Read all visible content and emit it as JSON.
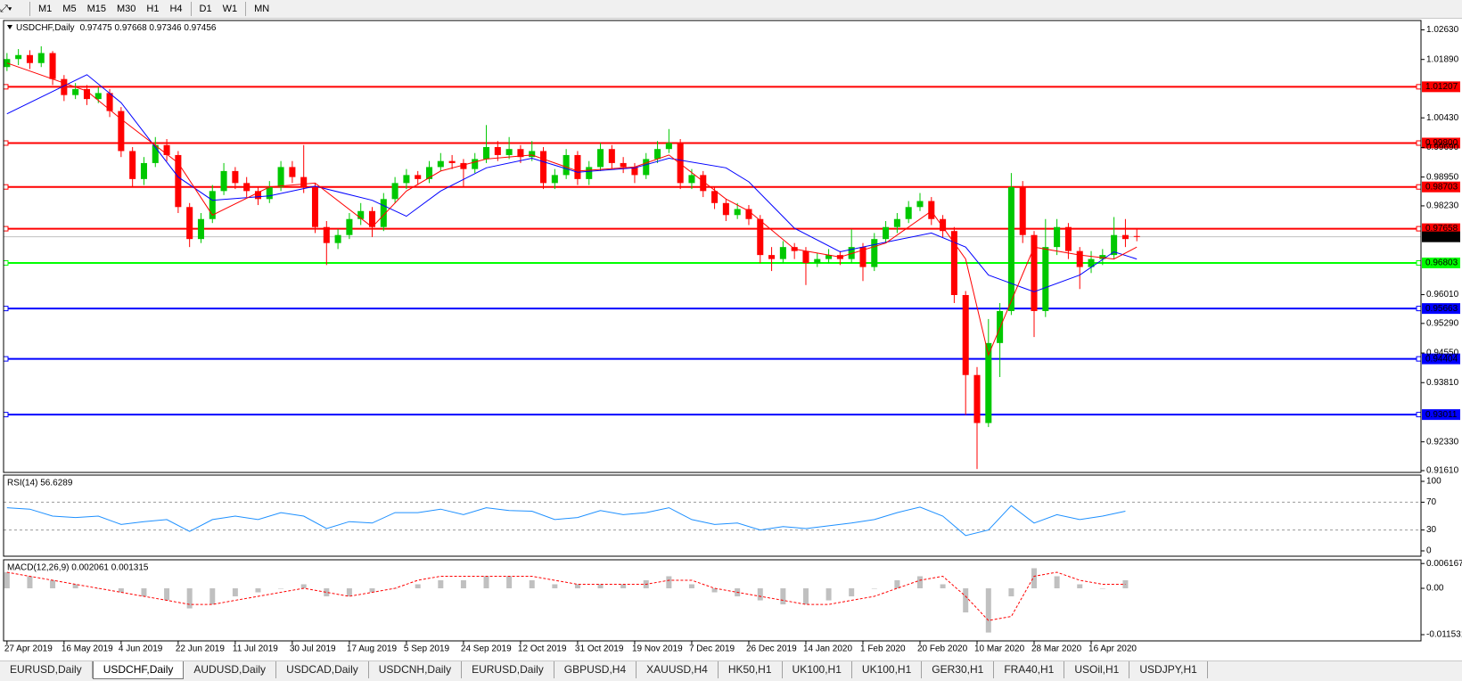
{
  "toolbar": {
    "timeframes": [
      "M1",
      "M5",
      "M15",
      "M30",
      "H1",
      "H4",
      "D1",
      "W1",
      "MN"
    ]
  },
  "tabs": {
    "items": [
      "EURUSD,Daily",
      "USDCHF,Daily",
      "AUDUSD,Daily",
      "USDCAD,Daily",
      "USDCNH,Daily",
      "EURUSD,Daily",
      "GBPUSD,H4",
      "XAUUSD,H4",
      "HK50,H1",
      "UK100,H1",
      "UK100,H1",
      "GER30,H1",
      "FRA40,H1",
      "USOil,H1",
      "USDJPY,H1"
    ],
    "active": 1
  },
  "chart_data": [
    {
      "type": "candlestick",
      "title": "USDCHF,Daily",
      "ohlc_label": "0.97475 0.97668 0.97346 0.97456",
      "up_color": "#00c800",
      "down_color": "#ff0000",
      "xlim": [
        -0.3,
        123.9
      ],
      "ylim": [
        0.91565,
        1.02864
      ],
      "xticks": [
        {
          "value": 0,
          "label": "27 Apr 2019"
        },
        {
          "value": 5,
          "label": "16 May 2019"
        },
        {
          "value": 10,
          "label": "4 Jun 2019"
        },
        {
          "value": 15,
          "label": "22 Jun 2019"
        },
        {
          "value": 20,
          "label": "11 Jul 2019"
        },
        {
          "value": 25,
          "label": "30 Jul 2019"
        },
        {
          "value": 30,
          "label": "17 Aug 2019"
        },
        {
          "value": 35,
          "label": "5 Sep 2019"
        },
        {
          "value": 40,
          "label": "24 Sep 2019"
        },
        {
          "value": 45,
          "label": "12 Oct 2019"
        },
        {
          "value": 50,
          "label": "31 Oct 2019"
        },
        {
          "value": 55,
          "label": "19 Nov 2019"
        },
        {
          "value": 60,
          "label": "7 Dec 2019"
        },
        {
          "value": 65,
          "label": "26 Dec 2019"
        },
        {
          "value": 70,
          "label": "14 Jan 2020"
        },
        {
          "value": 75,
          "label": "1 Feb 2020"
        },
        {
          "value": 80,
          "label": "20 Feb 2020"
        },
        {
          "value": 85,
          "label": "10 Mar 2020"
        },
        {
          "value": 90,
          "label": "28 Mar 2020"
        },
        {
          "value": 95,
          "label": "16 Apr 2020"
        }
      ],
      "yticks": [
        {
          "value": 1.0263,
          "label": "1.02630"
        },
        {
          "value": 1.0189,
          "label": "1.01890"
        },
        {
          "value": 1.0043,
          "label": "1.00430"
        },
        {
          "value": 0.9969,
          "label": "0.99690"
        },
        {
          "value": 0.9895,
          "label": "0.98950"
        },
        {
          "value": 0.9823,
          "label": "0.98230"
        },
        {
          "value": 0.9601,
          "label": "0.96010"
        },
        {
          "value": 0.9529,
          "label": "0.95290"
        },
        {
          "value": 0.9455,
          "label": "0.94550"
        },
        {
          "value": 0.9381,
          "label": "0.93810"
        },
        {
          "value": 0.9233,
          "label": "0.92330"
        },
        {
          "value": 0.9161,
          "label": "0.91610"
        }
      ],
      "levels": [
        {
          "value": 1.01207,
          "label": "1.01207",
          "color": "#ff0000",
          "label_color": "#ffffff"
        },
        {
          "value": 0.998,
          "label": "0.99800",
          "color": "#ff0000",
          "label_color": "#ffffff"
        },
        {
          "value": 0.98703,
          "label": "0.98703",
          "color": "#ff0000",
          "label_color": "#ffffff"
        },
        {
          "value": 0.97658,
          "label": "0.97658",
          "color": "#ff0000",
          "label_color": "#ffffff"
        },
        {
          "value": 0.96803,
          "label": "0.96803",
          "color": "#00ff00",
          "label_color": "#000000"
        },
        {
          "value": 0.95663,
          "label": "0.95663",
          "color": "#0000ff",
          "label_color": "#ffffff"
        },
        {
          "value": 0.94404,
          "label": "0.94404",
          "color": "#0000ff",
          "label_color": "#ffffff"
        },
        {
          "value": 0.93011,
          "label": "0.93011",
          "color": "#0000ff",
          "label_color": "#ffffff"
        }
      ],
      "current_price": {
        "value": 0.97456,
        "label": "0.97456",
        "color": "#c0c0c0"
      },
      "candles": [
        [
          1.017,
          1.0205,
          1.016,
          1.019
        ],
        [
          1.019,
          1.0215,
          1.0175,
          1.02
        ],
        [
          1.02,
          1.0212,
          1.0165,
          1.018
        ],
        [
          1.018,
          1.0222,
          1.017,
          1.0205
        ],
        [
          1.0205,
          1.021,
          1.0125,
          1.014
        ],
        [
          1.014,
          1.015,
          1.0085,
          1.01
        ],
        [
          1.01,
          1.013,
          1.009,
          1.0115
        ],
        [
          1.0115,
          1.0125,
          1.0075,
          1.009
        ],
        [
          1.009,
          1.012,
          1.008,
          1.0105
        ],
        [
          1.0105,
          1.0115,
          1.0045,
          1.006
        ],
        [
          1.006,
          1.007,
          0.9945,
          0.996
        ],
        [
          0.996,
          0.997,
          0.987,
          0.989
        ],
        [
          0.989,
          0.9945,
          0.9875,
          0.993
        ],
        [
          0.993,
          0.9995,
          0.992,
          0.9975
        ],
        [
          0.9975,
          0.999,
          0.9935,
          0.995
        ],
        [
          0.995,
          0.996,
          0.9805,
          0.982
        ],
        [
          0.982,
          0.983,
          0.972,
          0.974
        ],
        [
          0.974,
          0.9805,
          0.973,
          0.979
        ],
        [
          0.979,
          0.9875,
          0.978,
          0.986
        ],
        [
          0.986,
          0.993,
          0.985,
          0.991
        ],
        [
          0.991,
          0.992,
          0.9865,
          0.988
        ],
        [
          0.988,
          0.9895,
          0.9845,
          0.986
        ],
        [
          0.986,
          0.987,
          0.9825,
          0.984
        ],
        [
          0.984,
          0.9885,
          0.983,
          0.987
        ],
        [
          0.987,
          0.9935,
          0.986,
          0.992
        ],
        [
          0.992,
          0.9935,
          0.988,
          0.9895
        ],
        [
          0.9895,
          0.9975,
          0.9855,
          0.987
        ],
        [
          0.987,
          0.988,
          0.9755,
          0.977
        ],
        [
          0.977,
          0.9785,
          0.9675,
          0.973
        ],
        [
          0.973,
          0.9765,
          0.9715,
          0.975
        ],
        [
          0.975,
          0.9805,
          0.974,
          0.979
        ],
        [
          0.979,
          0.983,
          0.9775,
          0.981
        ],
        [
          0.981,
          0.982,
          0.9745,
          0.977
        ],
        [
          0.977,
          0.9855,
          0.976,
          0.984
        ],
        [
          0.984,
          0.9895,
          0.983,
          0.988
        ],
        [
          0.988,
          0.9915,
          0.9865,
          0.99
        ],
        [
          0.99,
          0.991,
          0.9875,
          0.989
        ],
        [
          0.989,
          0.9935,
          0.988,
          0.992
        ],
        [
          0.992,
          0.9955,
          0.991,
          0.9935
        ],
        [
          0.9935,
          0.995,
          0.9915,
          0.993
        ],
        [
          0.993,
          0.994,
          0.987,
          0.9915
        ],
        [
          0.9915,
          0.9955,
          0.9905,
          0.994
        ],
        [
          0.994,
          1.0025,
          0.993,
          0.997
        ],
        [
          0.997,
          0.9985,
          0.9935,
          0.995
        ],
        [
          0.995,
          0.9995,
          0.994,
          0.9965
        ],
        [
          0.9965,
          0.9975,
          0.993,
          0.9945
        ],
        [
          0.9945,
          0.9985,
          0.9935,
          0.996
        ],
        [
          0.996,
          0.997,
          0.9865,
          0.988
        ],
        [
          0.988,
          0.9915,
          0.9865,
          0.99
        ],
        [
          0.99,
          0.9965,
          0.989,
          0.995
        ],
        [
          0.995,
          0.996,
          0.9875,
          0.989
        ],
        [
          0.989,
          0.9935,
          0.9875,
          0.992
        ],
        [
          0.992,
          0.998,
          0.991,
          0.9965
        ],
        [
          0.9965,
          0.9975,
          0.9915,
          0.993
        ],
        [
          0.993,
          0.9945,
          0.9905,
          0.992
        ],
        [
          0.992,
          0.993,
          0.988,
          0.99
        ],
        [
          0.99,
          0.9955,
          0.989,
          0.994
        ],
        [
          0.994,
          0.9985,
          0.993,
          0.9965
        ],
        [
          0.9965,
          1.0015,
          0.9955,
          0.998
        ],
        [
          0.998,
          0.999,
          0.9865,
          0.988
        ],
        [
          0.988,
          0.9915,
          0.9865,
          0.99
        ],
        [
          0.99,
          0.991,
          0.9845,
          0.986
        ],
        [
          0.986,
          0.987,
          0.9815,
          0.983
        ],
        [
          0.983,
          0.984,
          0.9785,
          0.98
        ],
        [
          0.98,
          0.983,
          0.979,
          0.9815
        ],
        [
          0.9815,
          0.9825,
          0.9775,
          0.979
        ],
        [
          0.979,
          0.98,
          0.968,
          0.97
        ],
        [
          0.97,
          0.972,
          0.966,
          0.969
        ],
        [
          0.969,
          0.9735,
          0.968,
          0.972
        ],
        [
          0.972,
          0.973,
          0.969,
          0.971
        ],
        [
          0.971,
          0.972,
          0.9625,
          0.968
        ],
        [
          0.968,
          0.9705,
          0.967,
          0.969
        ],
        [
          0.969,
          0.9715,
          0.968,
          0.97
        ],
        [
          0.97,
          0.971,
          0.9675,
          0.969
        ],
        [
          0.969,
          0.9765,
          0.968,
          0.972
        ],
        [
          0.972,
          0.973,
          0.9635,
          0.967
        ],
        [
          0.967,
          0.9755,
          0.966,
          0.974
        ],
        [
          0.974,
          0.9785,
          0.973,
          0.977
        ],
        [
          0.977,
          0.9805,
          0.9755,
          0.979
        ],
        [
          0.979,
          0.9835,
          0.978,
          0.982
        ],
        [
          0.982,
          0.9855,
          0.981,
          0.9835
        ],
        [
          0.9835,
          0.9845,
          0.9775,
          0.979
        ],
        [
          0.979,
          0.98,
          0.9745,
          0.976
        ],
        [
          0.976,
          0.977,
          0.958,
          0.96
        ],
        [
          0.96,
          0.961,
          0.93,
          0.94
        ],
        [
          0.94,
          0.942,
          0.9165,
          0.928
        ],
        [
          0.928,
          0.954,
          0.927,
          0.948
        ],
        [
          0.948,
          0.958,
          0.9395,
          0.956
        ],
        [
          0.956,
          0.9905,
          0.955,
          0.987
        ],
        [
          0.987,
          0.9885,
          0.973,
          0.975
        ],
        [
          0.975,
          0.976,
          0.9495,
          0.956
        ],
        [
          0.956,
          0.979,
          0.9545,
          0.972
        ],
        [
          0.972,
          0.979,
          0.97,
          0.977
        ],
        [
          0.977,
          0.978,
          0.969,
          0.971
        ],
        [
          0.971,
          0.972,
          0.9615,
          0.967
        ],
        [
          0.967,
          0.971,
          0.9655,
          0.969
        ],
        [
          0.969,
          0.9715,
          0.9675,
          0.97
        ],
        [
          0.97,
          0.9795,
          0.969,
          0.975
        ],
        [
          0.975,
          0.979,
          0.972,
          0.974
        ],
        [
          0.97475,
          0.97668,
          0.97346,
          0.97456
        ]
      ],
      "x": [
        0,
        7,
        10,
        15,
        18,
        23,
        27,
        32,
        35,
        38,
        42,
        46,
        50,
        55,
        58,
        63,
        65,
        69,
        73,
        77,
        81,
        84,
        86,
        90,
        94,
        97,
        99
      ],
      "series": [
        {
          "color": "#0000ff",
          "values": [
            1.0053,
            1.0151,
            1.0081,
            0.9895,
            0.9837,
            0.9848,
            0.9872,
            0.9837,
            0.9797,
            0.986,
            0.9918,
            0.9942,
            0.9907,
            0.9918,
            0.9942,
            0.9918,
            0.9883,
            0.9767,
            0.9708,
            0.9732,
            0.9755,
            0.972,
            0.965,
            0.9608,
            0.965,
            0.9708,
            0.969
          ]
        },
        {
          "color": "#ff0000",
          "values": [
            1.018,
            1.011,
            1.004,
            0.993,
            0.98,
            0.987,
            0.988,
            0.977,
            0.986,
            0.991,
            0.994,
            0.995,
            0.991,
            0.992,
            0.995,
            0.984,
            0.981,
            0.9715,
            0.9695,
            0.973,
            0.981,
            0.969,
            0.945,
            0.972,
            0.97,
            0.969,
            0.972
          ]
        }
      ]
    },
    {
      "type": "line",
      "title": "RSI(14) 56.6289",
      "color": "#1e90ff",
      "xlim": [
        -0.3,
        123.9
      ],
      "ylim": [
        -7.7,
        109
      ],
      "yticks": [
        0,
        30,
        70,
        100
      ],
      "levels": [
        30,
        70
      ],
      "x": [
        0,
        2,
        4,
        6,
        8,
        10,
        12,
        14,
        16,
        18,
        20,
        22,
        24,
        26,
        28,
        30,
        32,
        34,
        36,
        38,
        40,
        42,
        44,
        46,
        48,
        50,
        52,
        54,
        56,
        58,
        60,
        62,
        64,
        66,
        68,
        70,
        72,
        74,
        76,
        78,
        80,
        82,
        84,
        86,
        88,
        90,
        92,
        94,
        96,
        98
      ],
      "values": [
        62,
        60,
        50,
        48,
        50,
        38,
        42,
        45,
        28,
        45,
        50,
        45,
        55,
        50,
        32,
        42,
        40,
        55,
        55,
        60,
        52,
        62,
        58,
        57,
        45,
        48,
        58,
        52,
        55,
        62,
        45,
        38,
        40,
        30,
        35,
        32,
        36,
        40,
        45,
        55,
        63,
        50,
        22,
        30,
        65,
        40,
        52,
        45,
        50,
        57
      ]
    },
    {
      "type": "bar",
      "title": "MACD(12,26,9) 0.002061 0.001315",
      "color": "#c0c0c0",
      "signal_color": "#ff0000",
      "xlim": [
        -0.3,
        123.9
      ],
      "ylim": [
        -0.01308,
        0.0071
      ],
      "yticks": [
        0.006167,
        {
          "value": 0,
          "label": "0.00"
        },
        -0.011531
      ],
      "x": [
        0,
        2,
        4,
        6,
        8,
        10,
        12,
        14,
        16,
        18,
        20,
        22,
        24,
        26,
        28,
        30,
        32,
        34,
        36,
        38,
        40,
        42,
        44,
        46,
        48,
        50,
        52,
        54,
        56,
        58,
        60,
        62,
        64,
        66,
        68,
        70,
        72,
        74,
        76,
        78,
        80,
        82,
        84,
        86,
        88,
        90,
        92,
        94,
        96,
        98
      ],
      "values": [
        0.004,
        0.003,
        0.002,
        0.001,
        0,
        -0.001,
        -0.002,
        -0.003,
        -0.005,
        -0.004,
        -0.002,
        -0.001,
        0,
        0.001,
        -0.002,
        -0.002,
        -0.001,
        0,
        0.001,
        0.002,
        0.002,
        0.003,
        0.003,
        0.002,
        0.001,
        0.001,
        0.001,
        0.001,
        0.002,
        0.003,
        0.001,
        -0.001,
        -0.002,
        -0.003,
        -0.004,
        -0.004,
        -0.003,
        -0.002,
        0,
        0.002,
        0.003,
        0.001,
        -0.006,
        -0.011,
        -0.002,
        0.005,
        0.003,
        0.001,
        0,
        0.002
      ],
      "signal_values": [
        0.004,
        0.003,
        0.002,
        0.001,
        0,
        -0.001,
        -0.002,
        -0.003,
        -0.004,
        -0.004,
        -0.003,
        -0.002,
        -0.001,
        0,
        -0.001,
        -0.002,
        -0.001,
        0,
        0.002,
        0.003,
        0.003,
        0.003,
        0.003,
        0.003,
        0.002,
        0.001,
        0.001,
        0.001,
        0.001,
        0.002,
        0.002,
        0,
        -0.001,
        -0.002,
        -0.003,
        -0.004,
        -0.004,
        -0.003,
        -0.002,
        0,
        0.002,
        0.003,
        -0.002,
        -0.008,
        -0.007,
        0.003,
        0.004,
        0.002,
        0.001,
        0.001
      ]
    }
  ]
}
